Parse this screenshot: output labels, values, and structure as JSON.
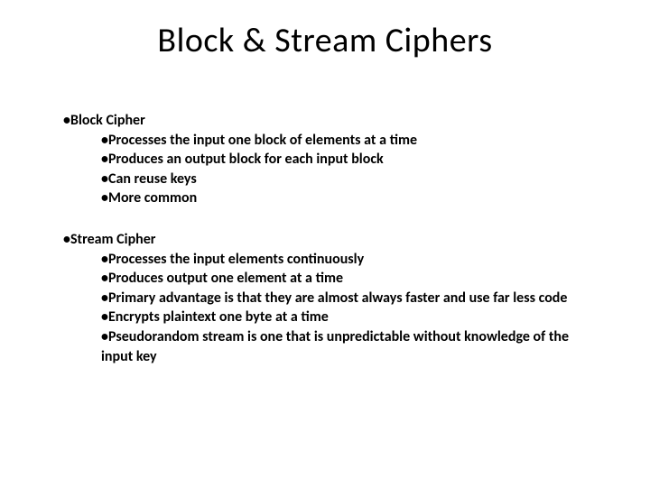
{
  "title": "Block & Stream Ciphers",
  "sections": [
    {
      "header": "Block Cipher",
      "items": [
        "Processes the input one block of elements at a time",
        "Produces an output block for each input block",
        "Can reuse keys",
        "More common"
      ]
    },
    {
      "header": "Stream Cipher",
      "items": [
        "Processes the input elements continuously",
        "Produces output one element at a time",
        "Primary advantage is that they are almost always faster and use far less code",
        "Encrypts plaintext one byte at a time",
        "Pseudorandom stream is one that is unpredictable without knowledge of the input key"
      ]
    }
  ],
  "colors": {
    "background": "#ffffff",
    "text": "#000000"
  },
  "typography": {
    "title_fontsize": 38,
    "body_fontsize": 16,
    "body_weight": 700,
    "title_weight": 400,
    "font_family": "Calibri"
  },
  "bullet_char": "•"
}
